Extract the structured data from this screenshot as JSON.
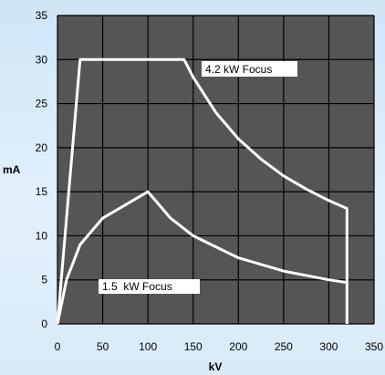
{
  "chart_data": {
    "type": "line",
    "xlabel": "kV",
    "ylabel": "mA",
    "xlim": [
      0,
      350
    ],
    "ylim": [
      0,
      35
    ],
    "xticks": [
      0,
      50,
      100,
      150,
      200,
      250,
      300,
      350
    ],
    "yticks": [
      0,
      5,
      10,
      15,
      20,
      25,
      30,
      35
    ],
    "grid": true,
    "series": [
      {
        "name": "4.2 kW Focus",
        "x": [
          0,
          25,
          140,
          150,
          175,
          200,
          225,
          250,
          275,
          300,
          320,
          320
        ],
        "y": [
          0,
          30,
          30,
          28,
          24,
          21,
          18.7,
          16.8,
          15.3,
          14,
          13.1,
          0
        ]
      },
      {
        "name": "1.5  kW Focus",
        "x": [
          0,
          10,
          25,
          50,
          75,
          100,
          125,
          150,
          200,
          250,
          300,
          320
        ],
        "y": [
          0,
          5,
          9,
          12,
          13.5,
          15,
          12,
          10,
          7.5,
          6,
          5,
          4.7
        ]
      }
    ],
    "colors": {
      "plot_background": "#555555",
      "grid": "#000000",
      "line": "#ffffff",
      "label_box": "#ffffff"
    }
  }
}
